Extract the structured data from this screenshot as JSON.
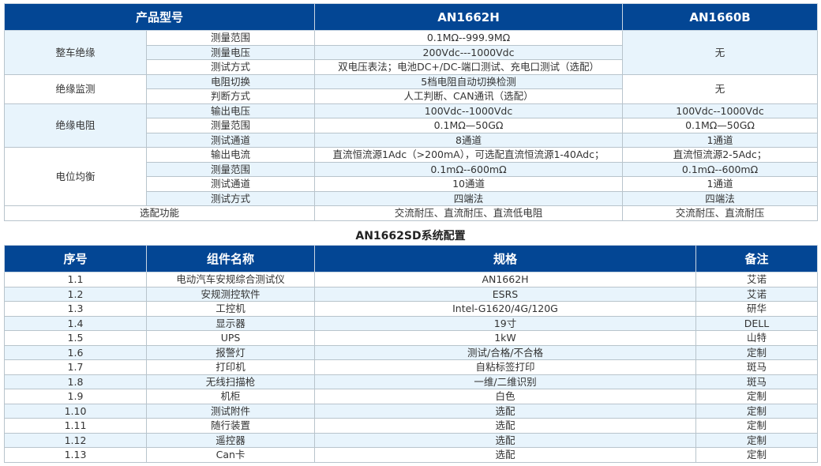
{
  "spec_table": {
    "headers": [
      "产品型号",
      "AN1662H",
      "AN1660B"
    ],
    "groups": [
      {
        "name": "整车绝缘",
        "rows": [
          {
            "item": "测量范围",
            "an1662h": "0.1MΩ--999.9MΩ"
          },
          {
            "item": "测量电压",
            "an1662h": "200Vdc---1000Vdc"
          },
          {
            "item": "测试方式",
            "an1662h": "双电压表法；电池DC+/DC-端口测试、充电口测试（选配）"
          }
        ],
        "an1660b": "无"
      },
      {
        "name": "绝缘监测",
        "rows": [
          {
            "item": "电阻切换",
            "an1662h": "5档电阻自动切换检测"
          },
          {
            "item": "判断方式",
            "an1662h": "人工判断、CAN通讯（选配）"
          }
        ],
        "an1660b": "无"
      },
      {
        "name": "绝缘电阻",
        "rows": [
          {
            "item": "输出电压",
            "an1662h": "100Vdc--1000Vdc",
            "an1660b": "100Vdc--1000Vdc"
          },
          {
            "item": "测量范围",
            "an1662h": "0.1MΩ—50GΩ",
            "an1660b": "0.1MΩ—50GΩ"
          },
          {
            "item": "测试通道",
            "an1662h": "8通道",
            "an1660b": "1通道"
          }
        ]
      },
      {
        "name": "电位均衡",
        "rows": [
          {
            "item": "输出电流",
            "an1662h": "直流恒流源1Adc（>200mA），可选配直流恒流源1-40Adc；",
            "an1660b": "直流恒流源2-5Adc；"
          },
          {
            "item": "测量范围",
            "an1662h": "0.1mΩ--600mΩ",
            "an1660b": "0.1mΩ--600mΩ"
          },
          {
            "item": "测试通道",
            "an1662h": "10通道",
            "an1660b": "1通道"
          },
          {
            "item": "测试方式",
            "an1662h": "四端法",
            "an1660b": "四端法"
          }
        ]
      }
    ],
    "optional": {
      "label": "选配功能",
      "an1662h": "交流耐压、直流耐压、直流低电阻",
      "an1660b": "交流耐压、直流耐压"
    }
  },
  "config_title": "AN1662SD系统配置",
  "config_table": {
    "headers": [
      "序号",
      "组件名称",
      "规格",
      "备注"
    ],
    "rows": [
      [
        "1.1",
        "电动汽车安规综合测试仪",
        "AN1662H",
        "艾诺"
      ],
      [
        "1.2",
        "安规测控软件",
        "ESRS",
        "艾诺"
      ],
      [
        "1.3",
        "工控机",
        "Intel-G1620/4G/120G",
        "研华"
      ],
      [
        "1.4",
        "显示器",
        "19寸",
        "DELL"
      ],
      [
        "1.5",
        "UPS",
        "1kW",
        "山特"
      ],
      [
        "1.6",
        "报警灯",
        "测试/合格/不合格",
        "定制"
      ],
      [
        "1.7",
        "打印机",
        "自粘标签打印",
        "斑马"
      ],
      [
        "1.8",
        "无线扫描枪",
        "一维/二维识别",
        "斑马"
      ],
      [
        "1.9",
        "机柜",
        "白色",
        "定制"
      ],
      [
        "1.10",
        "测试附件",
        "选配",
        "定制"
      ],
      [
        "1.11",
        "随行装置",
        "选配",
        "定制"
      ],
      [
        "1.12",
        "遥控器",
        "选配",
        "定制"
      ],
      [
        "1.13",
        "Can卡",
        "选配",
        "定制"
      ]
    ]
  },
  "colors": {
    "header_bg": "#034694",
    "row_alt": "#e8f4fc"
  }
}
